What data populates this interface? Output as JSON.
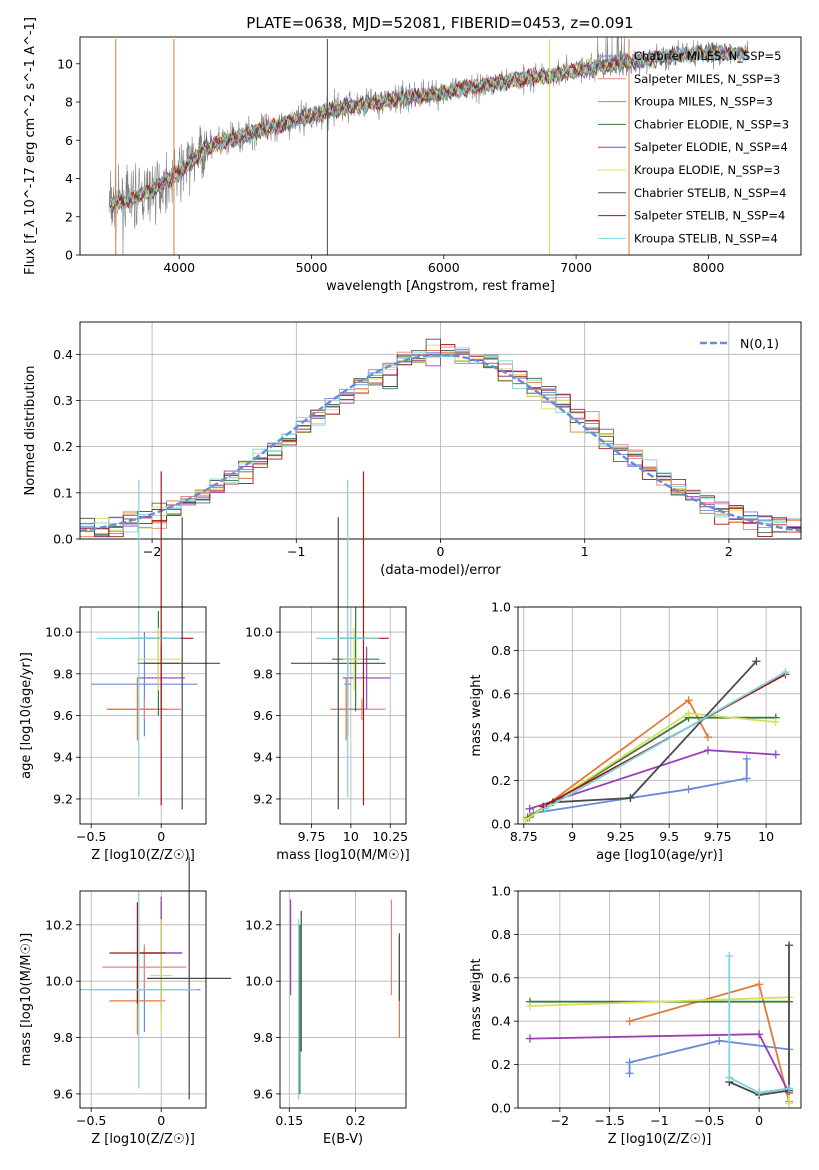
{
  "figure": {
    "title": "PLATE=0638, MJD=52081, FIBERID=0453, z=0.091"
  },
  "colors": {
    "Chabrier MILES": "#6a8bd8",
    "Salpeter MILES": "#e8837d",
    "Kroupa MILES": "#e07b39",
    "Chabrier ELODIE": "#3c7a3c",
    "Salpeter ELODIE": "#9b3fb5",
    "Kroupa ELODIE": "#d6e05a",
    "Chabrier STELIB": "#4a4a4a",
    "Salpeter STELIB": "#a01818",
    "Kroupa STELIB": "#79d6e0",
    "data": "#808080",
    "normal": "#6a8bd8"
  },
  "legend_spectrum": [
    {
      "model": "Chabrier MILES",
      "nssp": "5"
    },
    {
      "model": "Salpeter MILES",
      "nssp": "3"
    },
    {
      "model": "Kroupa MILES",
      "nssp": "3"
    },
    {
      "model": "Chabrier ELODIE",
      "nssp": "3"
    },
    {
      "model": "Salpeter ELODIE",
      "nssp": "4"
    },
    {
      "model": "Kroupa ELODIE",
      "nssp": "3"
    },
    {
      "model": "Chabrier STELIB",
      "nssp": "4"
    },
    {
      "model": "Salpeter STELIB",
      "nssp": "4"
    },
    {
      "model": "Kroupa STELIB",
      "nssp": "4"
    }
  ],
  "chart_data": [
    {
      "id": "spectrum",
      "type": "line",
      "xlabel": "wavelength [Angstrom, rest frame]",
      "ylabel": "Flux [f_λ 10^-17 erg cm^-2 s^-1 A^-1]",
      "xlim": [
        3250,
        8700
      ],
      "ylim": [
        0,
        11.4
      ],
      "xticks": [
        4000,
        5000,
        6000,
        7000,
        8000
      ],
      "yticks": [
        0,
        2,
        4,
        6,
        8,
        10
      ],
      "continuum": {
        "x": [
          3470,
          3600,
          3800,
          4000,
          4200,
          4500,
          4800,
          5000,
          5300,
          5600,
          6000,
          6400,
          6800,
          7200,
          7600,
          8000,
          8300
        ],
        "y": [
          2.6,
          2.8,
          3.4,
          4.3,
          5.6,
          6.3,
          6.9,
          7.3,
          7.8,
          8.1,
          8.5,
          9.0,
          9.4,
          9.9,
          10.3,
          10.6,
          10.5
        ]
      },
      "grid": false
    },
    {
      "id": "residuals",
      "type": "line",
      "xlabel": "(data-model)/error",
      "ylabel": "Normed distribution",
      "xlim": [
        -2.5,
        2.5
      ],
      "ylim": [
        0,
        0.47
      ],
      "xticks": [
        -2,
        -1,
        0,
        1,
        2
      ],
      "yticks": [
        0.0,
        0.1,
        0.2,
        0.3,
        0.4
      ],
      "legend": "N(0,1)",
      "legend_position": "top-right",
      "grid": true
    },
    {
      "id": "z-age",
      "type": "scatter",
      "xlabel": "Z [log10(Z/Z☉)]",
      "ylabel": "age [log10(age/yr)]",
      "xlim": [
        -0.58,
        0.32
      ],
      "ylim": [
        9.08,
        10.12
      ],
      "xticks": [
        -0.5,
        0.0
      ],
      "yticks": [
        9.2,
        9.4,
        9.6,
        9.8,
        10.0
      ],
      "grid": true
    },
    {
      "id": "mass-age",
      "type": "scatter",
      "xlabel": "mass [log10(M/M☉)]",
      "xlim": [
        9.55,
        10.35
      ],
      "ylim": [
        9.08,
        10.12
      ],
      "xticks": [
        9.75,
        10.0,
        10.25
      ],
      "yticks": [
        9.2,
        9.4,
        9.6,
        9.8,
        10.0
      ],
      "grid": true
    },
    {
      "id": "weight-age",
      "type": "line",
      "xlabel": "age [log10(age/yr)]",
      "ylabel": "mass weight",
      "xlim": [
        8.72,
        10.18
      ],
      "ylim": [
        0,
        1.0
      ],
      "xticks": [
        8.75,
        9.0,
        9.25,
        9.5,
        9.75,
        10.0
      ],
      "yticks": [
        0.0,
        0.2,
        0.4,
        0.6,
        0.8,
        1.0
      ],
      "series": [
        {
          "name": "Chabrier MILES",
          "x": [
            8.8,
            9.3,
            9.6,
            9.9,
            9.9
          ],
          "y": [
            0.05,
            0.12,
            0.16,
            0.21,
            0.3
          ]
        },
        {
          "name": "Kroupa MILES",
          "x": [
            8.78,
            9.6,
            9.7
          ],
          "y": [
            0.03,
            0.57,
            0.4
          ]
        },
        {
          "name": "Chabrier ELODIE",
          "x": [
            8.77,
            9.6,
            10.05
          ],
          "y": [
            0.03,
            0.49,
            0.49
          ]
        },
        {
          "name": "Salpeter ELODIE",
          "x": [
            8.78,
            9.7,
            10.05
          ],
          "y": [
            0.07,
            0.34,
            0.32
          ]
        },
        {
          "name": "Kroupa ELODIE",
          "x": [
            8.76,
            9.6,
            10.05
          ],
          "y": [
            0.02,
            0.51,
            0.47
          ]
        },
        {
          "name": "Chabrier STELIB",
          "x": [
            8.9,
            9.3,
            9.95
          ],
          "y": [
            0.1,
            0.12,
            0.75
          ]
        },
        {
          "name": "Salpeter STELIB",
          "x": [
            8.85,
            10.1
          ],
          "y": [
            0.08,
            0.69
          ]
        },
        {
          "name": "Kroupa STELIB",
          "x": [
            8.86,
            10.1
          ],
          "y": [
            0.07,
            0.7
          ]
        }
      ],
      "grid": true
    },
    {
      "id": "z-mass",
      "type": "scatter",
      "xlabel": "Z [log10(Z/Z☉)]",
      "ylabel": "mass [log10(M/M☉)]",
      "xlim": [
        -0.58,
        0.32
      ],
      "ylim": [
        9.55,
        10.32
      ],
      "xticks": [
        -0.5,
        0.0
      ],
      "yticks": [
        9.6,
        9.8,
        10.0,
        10.2
      ],
      "grid": true
    },
    {
      "id": "ebv-mass",
      "type": "scatter",
      "xlabel": "E(B-V)",
      "xlim": [
        0.143,
        0.238
      ],
      "ylim": [
        9.55,
        10.32
      ],
      "xticks": [
        0.15,
        0.2
      ],
      "yticks": [
        9.6,
        9.8,
        10.0,
        10.2
      ],
      "grid": true
    },
    {
      "id": "weight-z",
      "type": "line",
      "xlabel": "Z [log10(Z/Z☉)]",
      "ylabel": "mass weight",
      "xlim": [
        -2.42,
        0.42
      ],
      "ylim": [
        0,
        1.0
      ],
      "xticks": [
        -2.0,
        -1.5,
        -1.0,
        -0.5,
        0.0
      ],
      "yticks": [
        0.0,
        0.2,
        0.4,
        0.6,
        0.8,
        1.0
      ],
      "series": [
        {
          "name": "Chabrier MILES",
          "x": [
            -1.3,
            -1.3,
            -0.4,
            0.3
          ],
          "y": [
            0.16,
            0.21,
            0.31,
            0.27
          ]
        },
        {
          "name": "Kroupa MILES",
          "x": [
            -1.3,
            0.0,
            0.3
          ],
          "y": [
            0.4,
            0.57,
            0.03
          ]
        },
        {
          "name": "Chabrier ELODIE",
          "x": [
            -2.3,
            0.3
          ],
          "y": [
            0.49,
            0.49
          ]
        },
        {
          "name": "Salpeter ELODIE",
          "x": [
            -2.3,
            0.0,
            0.3
          ],
          "y": [
            0.32,
            0.34,
            0.07
          ]
        },
        {
          "name": "Kroupa ELODIE",
          "x": [
            -2.3,
            0.3,
            0.3
          ],
          "y": [
            0.47,
            0.51,
            0.02
          ]
        },
        {
          "name": "Chabrier STELIB",
          "x": [
            -0.3,
            0.0,
            0.3,
            0.3
          ],
          "y": [
            0.12,
            0.06,
            0.08,
            0.75
          ]
        },
        {
          "name": "Salpeter STELIB",
          "x": [
            0.0,
            0.3
          ],
          "y": [
            0.07,
            0.09
          ]
        },
        {
          "name": "Kroupa STELIB",
          "x": [
            -0.3,
            -0.3,
            0.0,
            0.3
          ],
          "y": [
            0.7,
            0.14,
            0.07,
            0.09
          ]
        }
      ],
      "grid": true
    }
  ]
}
